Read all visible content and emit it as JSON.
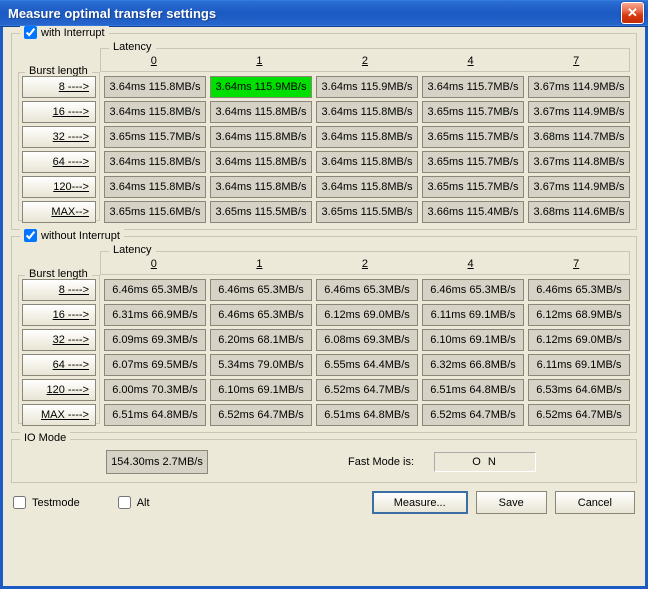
{
  "window": {
    "title": "Measure optimal transfer settings"
  },
  "latency_label": "Latency",
  "burst_length_label": "Burst length",
  "latency_headers": [
    "0",
    "1",
    "2",
    "4",
    "7"
  ],
  "burst_headers": [
    "8 ---->",
    "16 ---->",
    "32 ---->",
    "64 ---->",
    "120--->",
    "MAX-->"
  ],
  "burst_headers2": [
    "8 ---->",
    "16 ---->",
    "32 ---->",
    "64 ---->",
    "120 ---->",
    "MAX ---->"
  ],
  "group_with": {
    "label": "with Interrupt",
    "checked": true,
    "best": {
      "row": 0,
      "col": 1
    },
    "rows": [
      [
        "3.64ms 115.8MB/s",
        "3.64ms 115.9MB/s",
        "3.64ms 115.9MB/s",
        "3.64ms 115.7MB/s",
        "3.67ms 114.9MB/s"
      ],
      [
        "3.64ms 115.8MB/s",
        "3.64ms 115.8MB/s",
        "3.64ms 115.8MB/s",
        "3.65ms 115.7MB/s",
        "3.67ms 114.9MB/s"
      ],
      [
        "3.65ms 115.7MB/s",
        "3.64ms 115.8MB/s",
        "3.64ms 115.8MB/s",
        "3.65ms 115.7MB/s",
        "3.68ms 114.7MB/s"
      ],
      [
        "3.64ms 115.8MB/s",
        "3.64ms 115.8MB/s",
        "3.64ms 115.8MB/s",
        "3.65ms 115.7MB/s",
        "3.67ms 114.8MB/s"
      ],
      [
        "3.64ms 115.8MB/s",
        "3.64ms 115.8MB/s",
        "3.64ms 115.8MB/s",
        "3.65ms 115.7MB/s",
        "3.67ms 114.9MB/s"
      ],
      [
        "3.65ms 115.6MB/s",
        "3.65ms 115.5MB/s",
        "3.65ms 115.5MB/s",
        "3.66ms 115.4MB/s",
        "3.68ms 114.6MB/s"
      ]
    ]
  },
  "group_without": {
    "label": "without Interrupt",
    "checked": true,
    "rows": [
      [
        "6.46ms 65.3MB/s",
        "6.46ms 65.3MB/s",
        "6.46ms 65.3MB/s",
        "6.46ms 65.3MB/s",
        "6.46ms 65.3MB/s"
      ],
      [
        "6.31ms 66.9MB/s",
        "6.46ms 65.3MB/s",
        "6.12ms 69.0MB/s",
        "6.11ms 69.1MB/s",
        "6.12ms 68.9MB/s"
      ],
      [
        "6.09ms 69.3MB/s",
        "6.20ms 68.1MB/s",
        "6.08ms 69.3MB/s",
        "6.10ms 69.1MB/s",
        "6.12ms 69.0MB/s"
      ],
      [
        "6.07ms 69.5MB/s",
        "5.34ms 79.0MB/s",
        "6.55ms 64.4MB/s",
        "6.32ms 66.8MB/s",
        "6.11ms 69.1MB/s"
      ],
      [
        "6.00ms 70.3MB/s",
        "6.10ms 69.1MB/s",
        "6.52ms 64.7MB/s",
        "6.51ms 64.8MB/s",
        "6.53ms 64.6MB/s"
      ],
      [
        "6.51ms 64.8MB/s",
        "6.52ms 64.7MB/s",
        "6.51ms 64.8MB/s",
        "6.52ms 64.7MB/s",
        "6.52ms 64.7MB/s"
      ]
    ]
  },
  "io_mode": {
    "label": "IO Mode",
    "value": "154.30ms 2.7MB/s",
    "fastmode_label": "Fast Mode is:",
    "fastmode_value": "O N"
  },
  "bottom": {
    "testmode_label": "Testmode",
    "testmode_checked": false,
    "alt_label": "Alt",
    "alt_checked": false,
    "measure_label": "Measure...",
    "save_label": "Save",
    "cancel_label": "Cancel"
  }
}
